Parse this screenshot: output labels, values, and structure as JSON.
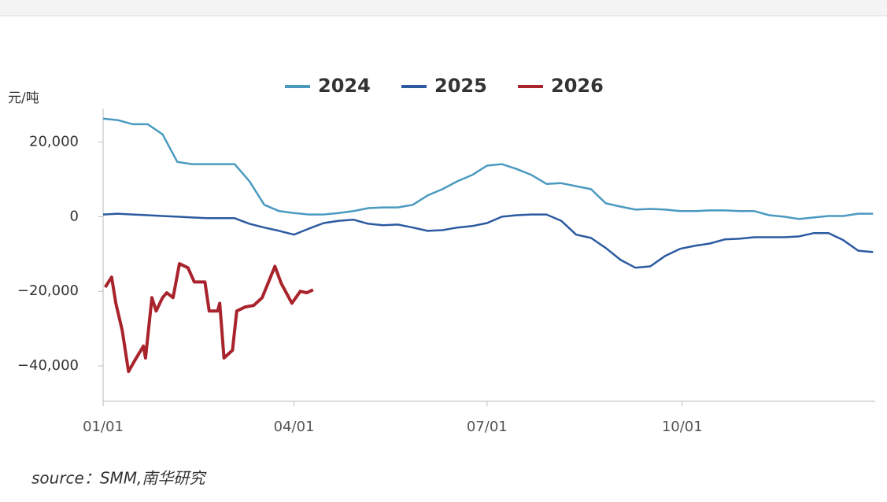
{
  "chart_data": {
    "type": "line",
    "y_label": "元/吨",
    "source": "source：SMM,南华研究",
    "xlim": [
      "01/01",
      "12/31"
    ],
    "xticks": [
      "01/01",
      "04/01",
      "07/01",
      "10/01"
    ],
    "ylim": [
      -49500,
      29000
    ],
    "yticks": [
      {
        "value": -40000,
        "label": "−40,000"
      },
      {
        "value": -20000,
        "label": "−20,000"
      },
      0,
      {
        "value": 20000,
        "label": "20,000"
      }
    ],
    "legend": "top",
    "series": [
      {
        "name": "2024",
        "color": "#4a9ac0",
        "x": [
          "01/01",
          "01/08",
          "01/15",
          "01/22",
          "01/29",
          "02/05",
          "02/12",
          "02/19",
          "02/26",
          "03/04",
          "03/11",
          "03/18",
          "03/25",
          "04/01",
          "04/08",
          "04/15",
          "04/22",
          "04/29",
          "05/06",
          "05/13",
          "05/20",
          "05/27",
          "06/03",
          "06/10",
          "06/17",
          "06/24",
          "07/01",
          "07/08",
          "07/15",
          "07/22",
          "07/29",
          "08/05",
          "08/12",
          "08/19",
          "08/26",
          "09/02",
          "09/09",
          "09/16",
          "09/23",
          "09/30",
          "10/07",
          "10/14",
          "10/21",
          "10/28",
          "11/04",
          "11/11",
          "11/18",
          "11/25",
          "12/02",
          "12/09",
          "12/16",
          "12/23",
          "12/30"
        ],
        "values": [
          26300,
          25900,
          24800,
          24800,
          22100,
          14700,
          14100,
          14100,
          14100,
          14100,
          9500,
          3200,
          1500,
          1000,
          600,
          600,
          1000,
          1500,
          2300,
          2500,
          2500,
          3200,
          5700,
          7400,
          9500,
          11200,
          13700,
          14100,
          12800,
          11200,
          8800,
          9000,
          8200,
          7400,
          3600,
          2700,
          1900,
          2100,
          1900,
          1500,
          1500,
          1700,
          1700,
          1500,
          1500,
          400,
          0,
          -600,
          -200,
          200,
          200,
          800,
          800
        ]
      },
      {
        "name": "2025",
        "color": "#2c5aa0",
        "x": [
          "01/01",
          "01/08",
          "01/15",
          "01/22",
          "01/29",
          "02/05",
          "02/12",
          "02/19",
          "02/26",
          "03/04",
          "03/11",
          "03/18",
          "03/25",
          "04/01",
          "04/08",
          "04/15",
          "04/22",
          "04/29",
          "05/06",
          "05/13",
          "05/20",
          "05/27",
          "06/03",
          "06/10",
          "06/17",
          "06/24",
          "07/01",
          "07/08",
          "07/15",
          "07/22",
          "07/29",
          "08/05",
          "08/12",
          "08/19",
          "08/26",
          "09/02",
          "09/09",
          "09/16",
          "09/23",
          "09/30",
          "10/07",
          "10/14",
          "10/21",
          "10/28",
          "11/04",
          "11/11",
          "11/18",
          "11/25",
          "12/02",
          "12/09",
          "12/16",
          "12/23",
          "12/30"
        ],
        "values": [
          600,
          800,
          600,
          400,
          200,
          0,
          -200,
          -400,
          -400,
          -400,
          -1900,
          -2900,
          -3800,
          -4800,
          -3200,
          -1700,
          -1100,
          -800,
          -1900,
          -2300,
          -2100,
          -2900,
          -3800,
          -3600,
          -2900,
          -2500,
          -1700,
          0,
          400,
          600,
          600,
          -1100,
          -4800,
          -5700,
          -8400,
          -11600,
          -13700,
          -13300,
          -10500,
          -8600,
          -7800,
          -7200,
          -6100,
          -5900,
          -5500,
          -5500,
          -5500,
          -5300,
          -4400,
          -4400,
          -6300,
          -9100,
          -9500
        ]
      },
      {
        "name": "2026",
        "color": "#a8232b",
        "x": [
          "01/02",
          "01/05",
          "01/07",
          "01/10",
          "01/13",
          "01/16",
          "01/20",
          "01/21",
          "01/24",
          "01/26",
          "01/29",
          "01/31",
          "02/03",
          "02/06",
          "02/10",
          "02/13",
          "02/18",
          "02/20",
          "02/24",
          "02/25",
          "02/27",
          "03/03",
          "03/05",
          "03/09",
          "03/13",
          "03/17",
          "03/23",
          "03/26",
          "03/31",
          "04/04",
          "04/07",
          "04/10"
        ],
        "values": [
          -18900,
          -16200,
          -23200,
          -30500,
          -41500,
          -38500,
          -34700,
          -37900,
          -21700,
          -25300,
          -21700,
          -20400,
          -21700,
          -12600,
          -13700,
          -17500,
          -17500,
          -25300,
          -25300,
          -23200,
          -37900,
          -35800,
          -25300,
          -24200,
          -23800,
          -21700,
          -13300,
          -17900,
          -23200,
          -20000,
          -20400,
          -19600
        ]
      }
    ]
  }
}
